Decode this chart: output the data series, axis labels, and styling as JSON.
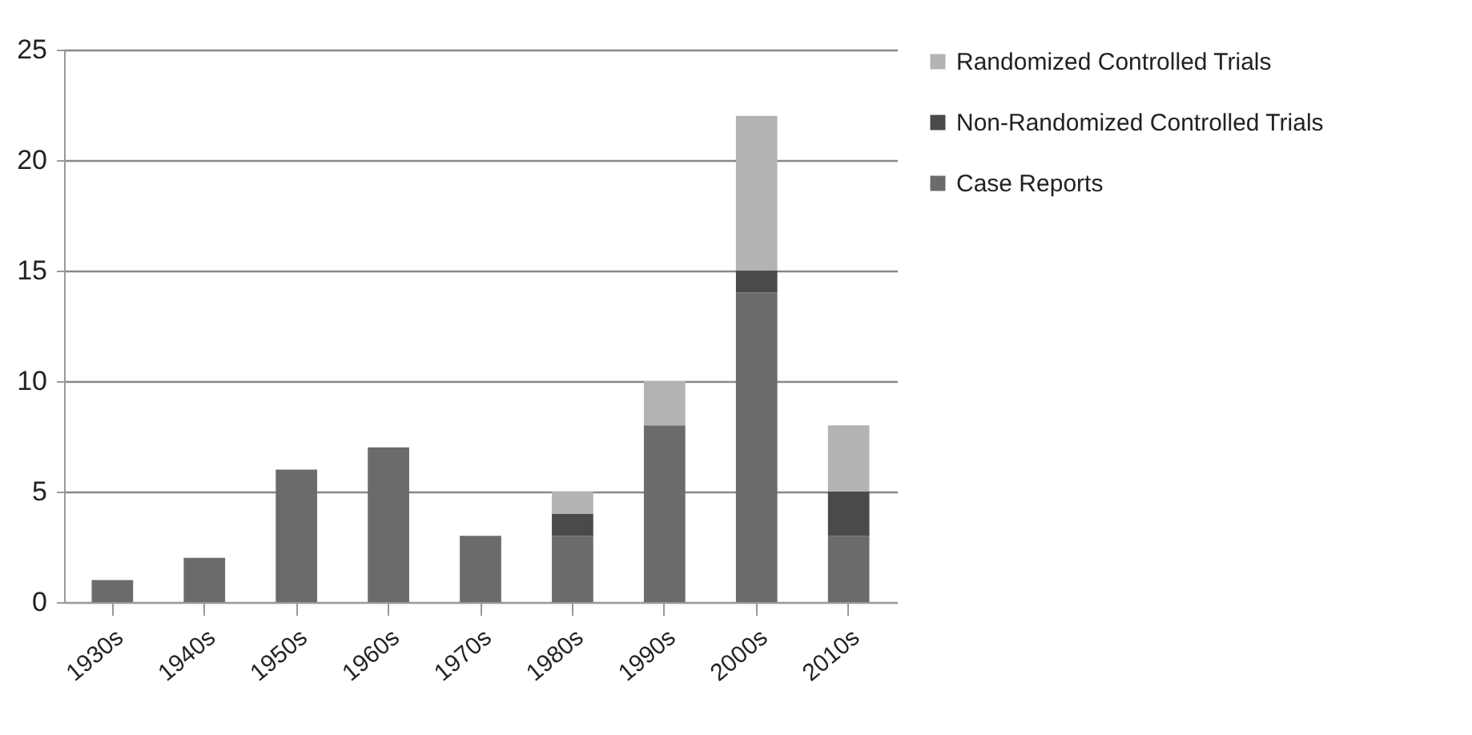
{
  "chart_data": {
    "type": "bar",
    "stacked": true,
    "categories": [
      "1930s",
      "1940s",
      "1950s",
      "1960s",
      "1970s",
      "1980s",
      "1990s",
      "2000s",
      "2010s"
    ],
    "series": [
      {
        "name": "Case Reports",
        "color": "#6b6b6b",
        "values": [
          1,
          2,
          6,
          7,
          3,
          3,
          8,
          14,
          3
        ]
      },
      {
        "name": "Non-Randomized Controlled Trials",
        "color": "#4a4a4a",
        "values": [
          0,
          0,
          0,
          0,
          0,
          1,
          0,
          1,
          2
        ]
      },
      {
        "name": "Randomized Controlled Trials",
        "color": "#b3b3b3",
        "values": [
          0,
          0,
          0,
          0,
          0,
          1,
          2,
          7,
          3
        ]
      }
    ],
    "ylim": [
      0,
      25
    ],
    "yticks": [
      0,
      5,
      10,
      15,
      20,
      25
    ],
    "grid": "y",
    "legend": "right"
  }
}
